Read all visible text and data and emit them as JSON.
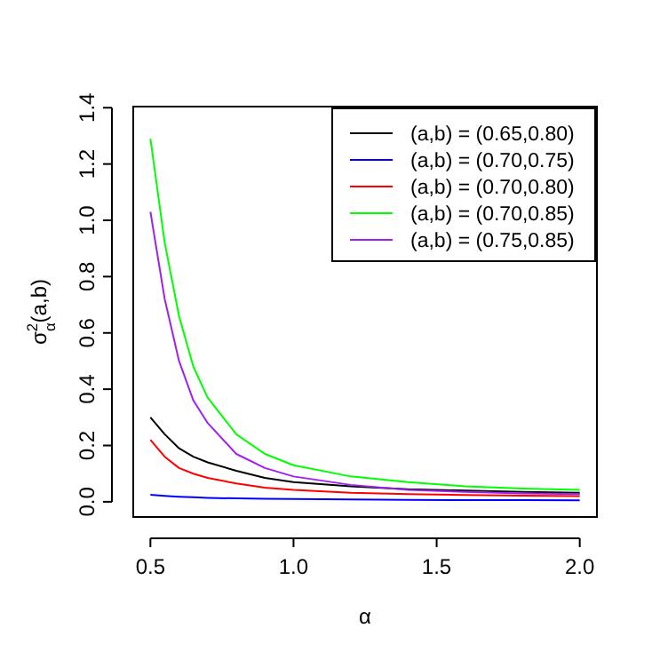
{
  "chart_data": {
    "type": "line",
    "xlabel": "α",
    "ylabel": "σ$^{2}$$_{α}$(a,b)",
    "x": [
      0.5,
      0.55,
      0.6,
      0.65,
      0.7,
      0.8,
      0.9,
      1.0,
      1.2,
      1.4,
      1.6,
      1.8,
      2.0
    ],
    "series": [
      {
        "name": "(a,b) = (0.65,0.80)",
        "color": "#000000",
        "values": [
          0.3,
          0.24,
          0.19,
          0.16,
          0.14,
          0.11,
          0.085,
          0.07,
          0.055,
          0.045,
          0.04,
          0.035,
          0.032
        ]
      },
      {
        "name": "(a,b) = (0.70,0.75)",
        "color": "#0000ff",
        "values": [
          0.025,
          0.021,
          0.018,
          0.016,
          0.014,
          0.012,
          0.011,
          0.01,
          0.008,
          0.007,
          0.006,
          0.006,
          0.005
        ]
      },
      {
        "name": "(a,b) = (0.70,0.80)",
        "color": "#ff0000",
        "values": [
          0.22,
          0.16,
          0.12,
          0.1,
          0.085,
          0.065,
          0.05,
          0.042,
          0.032,
          0.027,
          0.024,
          0.022,
          0.02
        ]
      },
      {
        "name": "(a,b) = (0.70,0.85)",
        "color": "#00ff00",
        "values": [
          1.29,
          0.92,
          0.66,
          0.48,
          0.37,
          0.24,
          0.17,
          0.13,
          0.09,
          0.07,
          0.055,
          0.047,
          0.042
        ]
      },
      {
        "name": "(a,b) = (0.75,0.85)",
        "color": "#a020f0",
        "values": [
          1.03,
          0.72,
          0.5,
          0.36,
          0.28,
          0.17,
          0.12,
          0.09,
          0.06,
          0.042,
          0.035,
          0.03,
          0.027
        ]
      }
    ],
    "xlim": [
      0.44,
      2.06
    ],
    "xticks": [
      0.5,
      {
        "value": 1,
        "label": "1.0"
      },
      1.5,
      {
        "value": 2,
        "label": "2.0"
      }
    ],
    "ylim": [
      -0.054,
      1.404
    ],
    "yticks": [
      {
        "value": 0,
        "label": "0.0"
      },
      0.2,
      0.4,
      0.6,
      0.8,
      {
        "value": 1,
        "label": "1.0"
      },
      1.2,
      1.4
    ],
    "grid": false,
    "legend": "top right",
    "marker": "none",
    "line_style": "solid"
  }
}
